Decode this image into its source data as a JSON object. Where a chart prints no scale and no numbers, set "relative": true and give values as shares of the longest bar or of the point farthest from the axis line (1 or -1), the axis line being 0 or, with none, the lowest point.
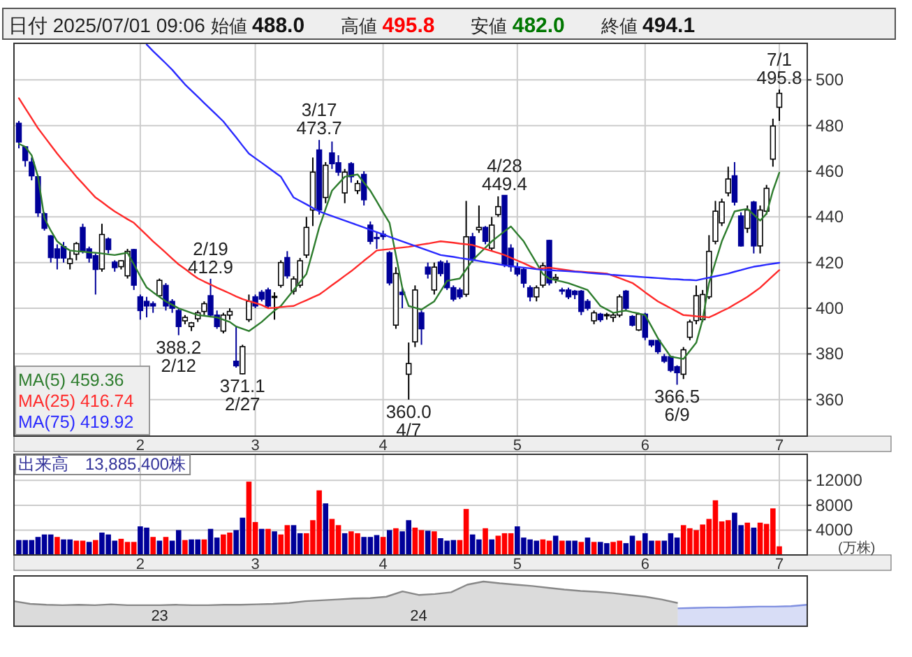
{
  "chart_data": [
    {
      "type": "candlestick",
      "title": "日付 2025/07/01 09:06",
      "ylim": [
        344,
        516
      ],
      "yticks": [
        360,
        380,
        400,
        420,
        440,
        460,
        480,
        500
      ],
      "grid": true,
      "legend": "bottom left",
      "annotations": [
        "始値 488.0",
        "高値 495.8",
        "安値 482.0",
        "終値 494.1",
        {
          "text": "2/19\n412.9",
          "y": 412.9
        },
        {
          "text": "388.2\n2/12",
          "y": 388.2
        },
        {
          "text": "371.1\n2/27",
          "y": 371.1
        },
        {
          "text": "3/17\n473.7",
          "y": 473.7
        },
        {
          "text": "360.0\n4/7",
          "y": 360.0
        },
        {
          "text": "4/28\n449.4",
          "y": 449.4
        },
        {
          "text": "366.5\n6/9",
          "y": 366.5
        },
        {
          "text": "7/1\n495.8",
          "y": 495.8
        }
      ],
      "categories": [
        null,
        null,
        null,
        null,
        null,
        null,
        null,
        null,
        null,
        null,
        null,
        null,
        null,
        null,
        null,
        null,
        null,
        null,
        null,
        "2",
        null,
        null,
        null,
        null,
        null,
        null,
        null,
        null,
        null,
        null,
        null,
        null,
        null,
        null,
        null,
        null,
        null,
        "3",
        null,
        null,
        null,
        null,
        null,
        null,
        null,
        null,
        null,
        null,
        null,
        null,
        null,
        null,
        null,
        null,
        null,
        null,
        null,
        "4",
        null,
        null,
        null,
        null,
        null,
        null,
        null,
        null,
        null,
        null,
        null,
        null,
        null,
        null,
        null,
        null,
        null,
        null,
        null,
        null,
        "5",
        null,
        null,
        null,
        null,
        null,
        null,
        null,
        null,
        null,
        null,
        null,
        null,
        null,
        null,
        null,
        null,
        null,
        null,
        null,
        "6",
        null,
        null,
        null,
        null,
        null,
        null,
        null,
        null,
        null,
        null,
        null,
        null,
        null,
        null,
        null,
        null,
        null,
        null,
        null,
        null,
        "7"
      ],
      "ohlc": [
        [
          481,
          482,
          470,
          472.8
        ],
        [
          470.7,
          471,
          462,
          464.7
        ],
        [
          464,
          466,
          456,
          458
        ],
        [
          457.6,
          458,
          440,
          441.8
        ],
        [
          441.4,
          442,
          434,
          435
        ],
        [
          431.7,
          432,
          420,
          422.2
        ],
        [
          426,
          428,
          417,
          422
        ],
        [
          427,
          429,
          420,
          422
        ],
        [
          419.6,
          425,
          417,
          421.6
        ],
        [
          423.7,
          429,
          421,
          428.3
        ],
        [
          435.4,
          437,
          424,
          425.3
        ],
        [
          426,
          427,
          420,
          422
        ],
        [
          423,
          424,
          406,
          417
        ],
        [
          417.2,
          437,
          416,
          432.3
        ],
        [
          430.3,
          431,
          424,
          425.7
        ],
        [
          420.2,
          421,
          416,
          417.8
        ],
        [
          418.2,
          421,
          417,
          420.8
        ],
        [
          414.2,
          426,
          413,
          424.9
        ],
        [
          425.7,
          426,
          408,
          410.1
        ],
        [
          405,
          406,
          395,
          399
        ],
        [
          403,
          405,
          396,
          401
        ],
        [
          402,
          403,
          398,
          401
        ],
        [
          405.5,
          413,
          405,
          412.2
        ],
        [
          410,
          411,
          399,
          401
        ],
        [
          403,
          404,
          398,
          400
        ],
        [
          399,
          400,
          388.2,
          392
        ],
        [
          394.5,
          397,
          393,
          396
        ],
        [
          392,
          394,
          390,
          393.6
        ],
        [
          395.4,
          399,
          394,
          398
        ],
        [
          398.6,
          403,
          397,
          402
        ],
        [
          405.5,
          412.9,
          396,
          397
        ],
        [
          397,
          399,
          391,
          392
        ],
        [
          390,
          398,
          389,
          397
        ],
        [
          397,
          400,
          395,
          398.6
        ],
        [
          376.8,
          392,
          374,
          374.8
        ],
        [
          371.3,
          384,
          371.1,
          383.2
        ],
        [
          395,
          406,
          394,
          403
        ],
        [
          405,
          406,
          400,
          401
        ],
        [
          407,
          408,
          403,
          404
        ],
        [
          408,
          409,
          400,
          401
        ],
        [
          405,
          407,
          395,
          405.2
        ],
        [
          410,
          421,
          409,
          420
        ],
        [
          422.2,
          425,
          413,
          414.2
        ],
        [
          407.5,
          414,
          406,
          412.8
        ],
        [
          410.1,
          422,
          409,
          420.8
        ],
        [
          423.3,
          440,
          422,
          435.4
        ],
        [
          443,
          466,
          436,
          459.6
        ],
        [
          469.3,
          473.7,
          441,
          443
        ],
        [
          448.5,
          464,
          446,
          462.6
        ],
        [
          468,
          473,
          461,
          463.3
        ],
        [
          463.7,
          467,
          458,
          459.6
        ],
        [
          450.5,
          461,
          446,
          459.6
        ],
        [
          463.3,
          464,
          455,
          457.6
        ],
        [
          451.5,
          456,
          450,
          454.6
        ],
        [
          458.6,
          460,
          445,
          447.5
        ],
        [
          436.4,
          438,
          428,
          429.3
        ],
        [
          431,
          433,
          426,
          430.5
        ],
        [
          432.4,
          434,
          430,
          431.4
        ],
        [
          424.3,
          425,
          410,
          411.1
        ],
        [
          392.6,
          418,
          391,
          415.2
        ],
        [
          407,
          409,
          400,
          406
        ],
        [
          371.1,
          385,
          360.0,
          375.8
        ],
        [
          385.3,
          410,
          383,
          408
        ],
        [
          398,
          399,
          384,
          391
        ],
        [
          418,
          420,
          413,
          415
        ],
        [
          408,
          420,
          406,
          418
        ],
        [
          420.2,
          421,
          414,
          415.2
        ],
        [
          419.6,
          421,
          408,
          409
        ],
        [
          409,
          410,
          403,
          404
        ],
        [
          408,
          409,
          404,
          405
        ],
        [
          406.1,
          447,
          405,
          431.3
        ],
        [
          431.3,
          433,
          420,
          421.2
        ],
        [
          434.4,
          445,
          433,
          435.4
        ],
        [
          435.4,
          436,
          428,
          429.3
        ],
        [
          426.3,
          440,
          425,
          436.4
        ],
        [
          441,
          449,
          440,
          444.5
        ],
        [
          449.4,
          449.4,
          418,
          419.2
        ],
        [
          426.3,
          428,
          416,
          418.2
        ],
        [
          418,
          420,
          414,
          415
        ],
        [
          417,
          418,
          409,
          411
        ],
        [
          409,
          410,
          403,
          405
        ],
        [
          405,
          410,
          403,
          409
        ],
        [
          410.1,
          420,
          409,
          418.6
        ],
        [
          429.7,
          430,
          410,
          411.1
        ],
        [
          412.8,
          415,
          411,
          413.5
        ],
        [
          408,
          409,
          406,
          407.5
        ],
        [
          408,
          409,
          404,
          405
        ],
        [
          407.5,
          408,
          404,
          406
        ],
        [
          407.5,
          408,
          397,
          398.6
        ],
        [
          403,
          404,
          399,
          400
        ],
        [
          394.5,
          399,
          393,
          398
        ],
        [
          397.4,
          398,
          394,
          395
        ],
        [
          397,
          398,
          395,
          397.2
        ],
        [
          396,
          398,
          394,
          397
        ],
        [
          397,
          406,
          396,
          405
        ],
        [
          407.5,
          408,
          399,
          400
        ],
        [
          396.4,
          397,
          392,
          392.6
        ],
        [
          390.5,
          398,
          390,
          397.4
        ],
        [
          397.4,
          398,
          386,
          387.3
        ],
        [
          385.9,
          386,
          383,
          383.9
        ],
        [
          385.9,
          386,
          380,
          381
        ],
        [
          378.8,
          380,
          376,
          376.8
        ],
        [
          378.8,
          379,
          372,
          372.8
        ],
        [
          374.4,
          375,
          366.5,
          371.8
        ],
        [
          371.1,
          383,
          369,
          381.8
        ],
        [
          387.3,
          395,
          386,
          394
        ],
        [
          394.6,
          410,
          393,
          405.5
        ],
        [
          395,
          408,
          394,
          406
        ],
        [
          405,
          432,
          404,
          424.9
        ],
        [
          429.3,
          447,
          428,
          442.5
        ],
        [
          437.4,
          448,
          436,
          446.5
        ],
        [
          450.5,
          462,
          449,
          456.6
        ],
        [
          458,
          464,
          445,
          446.5
        ],
        [
          440.4,
          442,
          427,
          427.3
        ],
        [
          435,
          445,
          433,
          443
        ],
        [
          446.5,
          447,
          424,
          427.3
        ],
        [
          427.3,
          445,
          424,
          443
        ],
        [
          442.5,
          454,
          441,
          452.5
        ],
        [
          465.3,
          483,
          462,
          479.8
        ],
        [
          488.0,
          495.8,
          482.0,
          494.1
        ]
      ],
      "series": [
        {
          "name": "MA(5)  459.36",
          "type": "line",
          "color": "#2e7d2e",
          "values": [
            472,
            470.7,
            467,
            457.6,
            439.4,
            434,
            429.3,
            427,
            425.3,
            425,
            424.8,
            424.5,
            424.3,
            424,
            423.6,
            423.3,
            423.8,
            424.3,
            419.2,
            414,
            409.1,
            407,
            405,
            403,
            401.5,
            400,
            399,
            398,
            397,
            396.7,
            396.3,
            396,
            395,
            394,
            392,
            391,
            390,
            392,
            394,
            396.5,
            399,
            401,
            404.5,
            408,
            411.5,
            415,
            425,
            435.4,
            443.5,
            451.5,
            454.5,
            457.6,
            458.1,
            458.6,
            455,
            451.5,
            446.8,
            442,
            437.4,
            423.3,
            409,
            401,
            400.2,
            399.4,
            401.2,
            403,
            407.5,
            412,
            412.5,
            413,
            417,
            421,
            423.8,
            426.5,
            429.3,
            431.5,
            433.7,
            435.8,
            432.5,
            429.3,
            424.5,
            419.8,
            415,
            413,
            412.3,
            411.7,
            411,
            410,
            409,
            408,
            404.5,
            401,
            399.5,
            398,
            398.5,
            399,
            398.3,
            397.7,
            397,
            392,
            386.9,
            382.8,
            378.8,
            378.3,
            377.8,
            381.3,
            384.9,
            395,
            411,
            420.2,
            429.3,
            435.8,
            442.4,
            443,
            443.5,
            441,
            438.4,
            441.4,
            451.5,
            459.4
          ]
        },
        {
          "name": "MA(25)  416.74",
          "type": "line",
          "color": "#ff2a2a",
          "values": [
            492,
            487.6,
            483.2,
            478.8,
            475.1,
            471.4,
            467.7,
            464.3,
            461,
            457.6,
            454.6,
            451.5,
            448.5,
            446.5,
            444.4,
            442.4,
            440.7,
            439,
            437.4,
            434.7,
            432,
            429.3,
            426.8,
            424.3,
            421.7,
            419.2,
            417.2,
            415.1,
            413.1,
            411.7,
            410.4,
            409,
            407.8,
            406.5,
            405.2,
            404,
            403.1,
            402.3,
            401.4,
            400,
            400.2,
            400.5,
            400.8,
            401,
            402.3,
            403.5,
            404.8,
            406,
            408,
            410.1,
            412.1,
            414.2,
            416.2,
            418.5,
            420.8,
            423,
            425.3,
            425.6,
            425.9,
            426.3,
            426.6,
            426.9,
            427.4,
            427.9,
            428.3,
            428.8,
            429.3,
            429,
            428.7,
            428.3,
            428,
            427.7,
            426.8,
            425.9,
            425.1,
            424.2,
            423.3,
            422.1,
            420.9,
            419.7,
            418.4,
            417.2,
            417.5,
            417.8,
            417.4,
            417,
            416.6,
            416.2,
            416,
            415.8,
            415.6,
            415.4,
            415.2,
            414.2,
            413.2,
            412.1,
            411.1,
            409.1,
            407,
            405,
            403,
            401.5,
            400,
            398.5,
            397,
            396.8,
            396.5,
            396.3,
            396,
            397.3,
            398.7,
            400,
            401.7,
            403.3,
            405,
            407,
            409,
            411.6,
            414.2,
            416.7
          ]
        },
        {
          "name": "MA(75)  419.92",
          "type": "line",
          "color": "#2a2aff",
          "values": [
            null,
            null,
            null,
            null,
            null,
            null,
            null,
            null,
            null,
            null,
            null,
            null,
            null,
            null,
            null,
            null,
            null,
            null,
            null,
            null,
            515.5,
            512.6,
            509.9,
            507.2,
            504.4,
            501.2,
            498,
            495.3,
            492.6,
            489.9,
            487.2,
            484.5,
            481.8,
            478.3,
            474.8,
            471.2,
            467.7,
            465.7,
            463.7,
            461.7,
            459.6,
            457.6,
            453,
            448.5,
            447,
            445.5,
            443.9,
            442.4,
            441.4,
            440.4,
            439.4,
            438.4,
            437.4,
            436.4,
            435.4,
            434.3,
            433.3,
            432.3,
            431.3,
            430.3,
            429.3,
            428.3,
            427.3,
            426.3,
            425.3,
            424.3,
            423.3,
            422.9,
            422.5,
            422,
            421.6,
            421.2,
            420.7,
            420.2,
            419.8,
            419.3,
            418.8,
            418.5,
            418.1,
            417.8,
            417.5,
            417.1,
            416.8,
            416.7,
            416.5,
            416.4,
            416.2,
            416,
            415.8,
            415.5,
            415.3,
            415.1,
            414.9,
            414.6,
            414.4,
            414.2,
            414,
            413.8,
            413.6,
            413.4,
            413.2,
            413,
            412.8,
            412.7,
            412.5,
            412.4,
            412.2,
            412.8,
            413.4,
            414,
            414.6,
            415.2,
            416,
            416.7,
            417.5,
            418.2,
            418.6,
            419.1,
            419.5,
            419.9
          ]
        }
      ]
    },
    {
      "type": "bar",
      "title": "出来高　13,885,400株",
      "ylabel": "(万株)",
      "ylim": [
        0,
        16200
      ],
      "yticks": [
        4000,
        8000,
        12000
      ],
      "grid": true,
      "categories": [
        null,
        null,
        null,
        null,
        null,
        null,
        null,
        null,
        null,
        null,
        null,
        null,
        null,
        null,
        null,
        null,
        null,
        null,
        null,
        "2",
        null,
        null,
        null,
        null,
        null,
        null,
        null,
        null,
        null,
        null,
        null,
        null,
        null,
        null,
        null,
        null,
        null,
        "3",
        null,
        null,
        null,
        null,
        null,
        null,
        null,
        null,
        null,
        null,
        null,
        null,
        null,
        null,
        null,
        null,
        null,
        null,
        null,
        "4",
        null,
        null,
        null,
        null,
        null,
        null,
        null,
        null,
        null,
        null,
        null,
        null,
        null,
        null,
        null,
        null,
        null,
        null,
        null,
        null,
        "5",
        null,
        null,
        null,
        null,
        null,
        null,
        null,
        null,
        null,
        null,
        null,
        null,
        null,
        null,
        null,
        null,
        null,
        null,
        null,
        "6",
        null,
        null,
        null,
        null,
        null,
        null,
        null,
        null,
        null,
        null,
        null,
        null,
        null,
        null,
        null,
        null,
        null,
        null,
        null,
        null,
        "7"
      ],
      "values": [
        2400,
        2400,
        2400,
        2900,
        3300,
        3300,
        2900,
        2500,
        2500,
        2300,
        2300,
        2100,
        2400,
        3600,
        3300,
        2300,
        2600,
        2100,
        2100,
        4600,
        4400,
        2900,
        2300,
        2900,
        2300,
        4000,
        2400,
        2500,
        2500,
        2500,
        4200,
        2800,
        3300,
        3600,
        4000,
        6000,
        11800,
        5300,
        4200,
        4200,
        3800,
        3300,
        4800,
        4800,
        3500,
        3500,
        5600,
        10400,
        8300,
        5800,
        4800,
        3500,
        3800,
        3500,
        2900,
        2900,
        3200,
        2900,
        4000,
        4300,
        3800,
        5600,
        4400,
        4000,
        3900,
        3800,
        2700,
        2300,
        2400,
        2400,
        7400,
        3300,
        2500,
        4300,
        2500,
        3100,
        3500,
        3500,
        4600,
        2800,
        2500,
        2300,
        2500,
        2300,
        3100,
        2300,
        2300,
        2300,
        2100,
        2800,
        2100,
        2100,
        1900,
        2100,
        2300,
        1900,
        3100,
        2300,
        3500,
        2300,
        2300,
        2300,
        3500,
        2800,
        4800,
        4300,
        4000,
        4900,
        5800,
        8800,
        5400,
        5600,
        6800,
        4800,
        5200,
        4400,
        5200,
        5000,
        7500,
        1389
      ],
      "colors": [
        "#000099",
        "#000099",
        "#000099",
        "#000099",
        "#000099",
        "#000099",
        "#ff0000",
        "#000099",
        "#000099",
        "#ff0000",
        "#ff0000",
        "#000099",
        "#ff0000",
        "#000099",
        "#000099",
        "#000099",
        "#ff0000",
        "#ff0000",
        "#ff0000",
        "#000099",
        "#000099",
        "#ff0000",
        "#000099",
        "#ff0000",
        "#000099",
        "#000099",
        "#ff0000",
        "#000099",
        "#000099",
        "#ff0000",
        "#000099",
        "#000099",
        "#ff0000",
        "#ff0000",
        "#000099",
        "#000099",
        "#ff0000",
        "#ff0000",
        "#000099",
        "#ff0000",
        "#000099",
        "#ff0000",
        "#ff0000",
        "#000099",
        "#000099",
        "#ff0000",
        "#ff0000",
        "#ff0000",
        "#000099",
        "#ff0000",
        "#ff0000",
        "#000099",
        "#ff0000",
        "#ff0000",
        "#000099",
        "#000099",
        "#000099",
        "#ff0000",
        "#000099",
        "#ff0000",
        "#000099",
        "#000099",
        "#ff0000",
        "#ff0000",
        "#000099",
        "#ff0000",
        "#000099",
        "#000099",
        "#000099",
        "#ff0000",
        "#ff0000",
        "#000099",
        "#000099",
        "#ff0000",
        "#000099",
        "#ff0000",
        "#ff0000",
        "#ff0000",
        "#000099",
        "#000099",
        "#000099",
        "#000099",
        "#ff0000",
        "#ff0000",
        "#000099",
        "#ff0000",
        "#000099",
        "#000099",
        "#ff0000",
        "#000099",
        "#ff0000",
        "#000099",
        "#000099",
        "#ff0000",
        "#ff0000",
        "#000099",
        "#000099",
        "#ff0000",
        "#000099",
        "#000099",
        "#ff0000",
        "#000099",
        "#000099",
        "#000099",
        "#ff0000",
        "#ff0000",
        "#ff0000",
        "#ff0000",
        "#ff0000",
        "#ff0000",
        "#ff0000",
        "#ff0000",
        "#000099",
        "#000099",
        "#ff0000",
        "#000099",
        "#ff0000",
        "#ff0000",
        "#ff0000",
        "#ff0000"
      ]
    },
    {
      "type": "area",
      "relative": true,
      "categories": [
        null,
        null,
        null,
        null,
        null,
        null,
        null,
        null,
        null,
        "23",
        null,
        null,
        null,
        null,
        null,
        null,
        null,
        null,
        null,
        null,
        null,
        null,
        null,
        null,
        null,
        "24",
        null,
        null,
        null,
        null,
        null,
        null,
        null,
        null,
        null,
        null,
        null,
        null,
        null,
        null,
        null,
        null,
        null,
        null,
        null,
        null,
        null,
        null,
        null,
        null
      ],
      "series": [
        {
          "color": "#888888",
          "values": [
            0.56,
            0.5,
            0.48,
            0.47,
            0.48,
            0.47,
            0.49,
            0.47,
            0.47,
            0.47,
            0.48,
            0.47,
            0.47,
            0.48,
            0.48,
            0.49,
            0.5,
            0.52,
            0.56,
            0.58,
            0.6,
            0.62,
            0.63,
            0.66,
            0.78,
            0.7,
            0.72,
            0.76,
            0.93,
            1,
            0.96,
            0.93,
            0.9,
            0.86,
            0.82,
            0.79,
            0.77,
            0.74,
            0.7,
            0.66,
            0.6,
            0.52,
            null,
            null,
            null,
            null,
            null,
            null,
            null,
            null
          ]
        },
        {
          "color": "#7f8fe0",
          "values": [
            null,
            null,
            null,
            null,
            null,
            null,
            null,
            null,
            null,
            null,
            null,
            null,
            null,
            null,
            null,
            null,
            null,
            null,
            null,
            null,
            null,
            null,
            null,
            null,
            null,
            null,
            null,
            null,
            null,
            null,
            null,
            null,
            null,
            null,
            null,
            null,
            null,
            null,
            null,
            null,
            null,
            0.4,
            0.41,
            0.42,
            0.42,
            0.43,
            0.44,
            0.44,
            0.45,
            0.48
          ]
        }
      ]
    }
  ]
}
